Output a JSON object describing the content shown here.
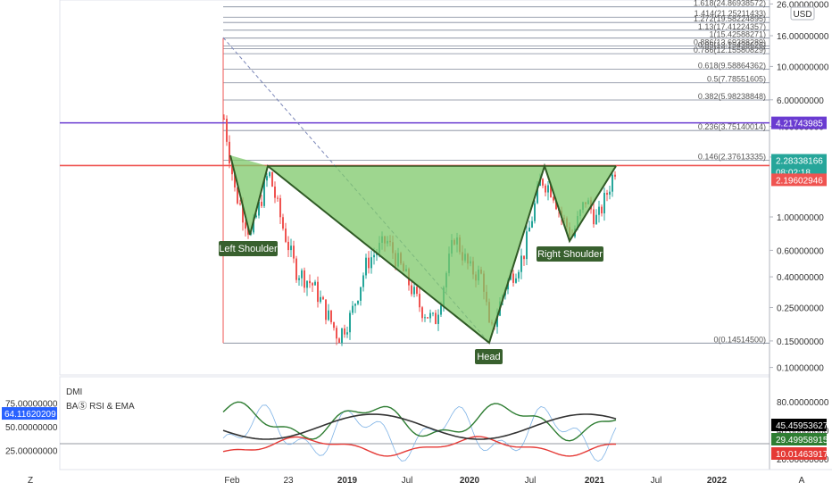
{
  "chart_data": {
    "type": "candlestick",
    "currency": "USD",
    "scale": "log",
    "price_ticks": [
      "26.00000000",
      "16.00000000",
      "10.00000000",
      "6.00000000",
      "4.00000000",
      "2.50000000",
      "1.00000000",
      "0.60000000",
      "0.40000000",
      "0.25000000",
      "0.15000000",
      "0.10000000"
    ],
    "price_tick_values": [
      26,
      16,
      10,
      6,
      4,
      2.5,
      1,
      0.6,
      0.4,
      0.25,
      0.15,
      0.1
    ],
    "fib_levels": [
      {
        "label": "1.618(24.86938572)",
        "value": 24.86938572
      },
      {
        "label": "1.414(21.25211433)",
        "value": 21.25211433
      },
      {
        "label": "1.272(19.58224895)",
        "value": 19.58224895
      },
      {
        "label": "1.13(17.41224357)",
        "value": 17.41224357
      },
      {
        "label": "1(15.42588271)",
        "value": 15.42588271
      },
      {
        "label": "0.886(13.69388289)",
        "value": 13.69388289
      },
      {
        "label": "0.85(13.15438626)",
        "value": 13.15438626
      },
      {
        "label": "0.786(12.15580829)",
        "value": 12.15580829
      },
      {
        "label": "0.618(9.58864362)",
        "value": 9.58864362
      },
      {
        "label": "0.5(7.78551605)",
        "value": 7.78551605
      },
      {
        "label": "0.382(5.98238848)",
        "value": 5.98238848
      },
      {
        "label": "0.236(3.75140014)",
        "value": 3.75140014
      },
      {
        "label": "0.146(2.37613335)",
        "value": 2.37613335
      },
      {
        "label": "0(0.14514500)",
        "value": 0.145145
      }
    ],
    "purple_level": {
      "label": "4.21743985",
      "value": 4.21743985,
      "color": "#6a3bd1"
    },
    "last_price": {
      "label": "2.28338166",
      "countdown": "08:02:18",
      "value": 2.28338166,
      "color": "#26a69a"
    },
    "red_level": {
      "label": "2.19602946",
      "value": 2.19602946,
      "color": "#ef5350"
    },
    "x_ticks": [
      "Feb",
      "23",
      "2019",
      "Jul",
      "2020",
      "Jul",
      "2021",
      "Jul",
      "2022"
    ],
    "annotations": [
      "Left Shoulder",
      "Head",
      "Right Shoulder"
    ],
    "pattern_color": "#7dc86a",
    "indicators": {
      "names": [
        "DMI",
        "BAⓈ RSI & EMA"
      ],
      "left_ticks": [
        "75.00000000",
        "50.00000000",
        "25.00000000"
      ],
      "left_tick_values": [
        75,
        50,
        25
      ],
      "left_tag": "64.11620209",
      "right_ticks": [
        "80.00000000",
        "40.00000000",
        "20.00000000"
      ],
      "right_tick_values": [
        80,
        40,
        20
      ],
      "right_tags": [
        {
          "label": "45.45953627",
          "color": "#000000"
        },
        {
          "label": "29.49958915",
          "color": "#2e7d32"
        },
        {
          "label": "10.01463917",
          "color": "#e53935"
        }
      ]
    },
    "corner_labels": {
      "left": "Z",
      "right": "A"
    },
    "up_color": "#26a69a",
    "down_color": "#ef5350"
  }
}
